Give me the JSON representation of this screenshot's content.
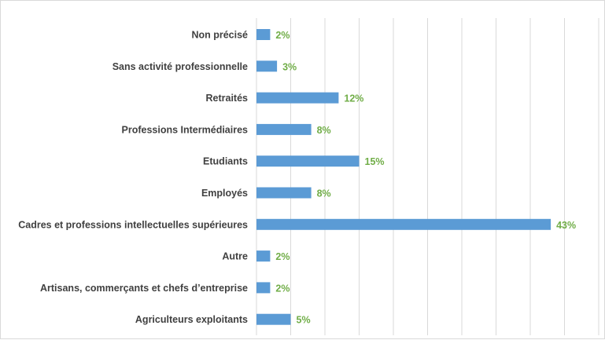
{
  "chart_data": {
    "type": "bar",
    "orientation": "horizontal",
    "categories": [
      "Non précisé",
      "Sans activité professionnelle",
      "Retraités",
      "Professions Intermédiaires",
      "Etudiants",
      "Employés",
      "Cadres et professions intellectuelles supérieures",
      "Autre",
      "Artisans, commerçants et chefs d’entreprise",
      "Agriculteurs exploitants"
    ],
    "values": [
      2,
      3,
      12,
      8,
      15,
      8,
      43,
      2,
      2,
      5
    ],
    "value_labels": [
      "2%",
      "3%",
      "12%",
      "8%",
      "15%",
      "8%",
      "43%",
      "2%",
      "2%",
      "5%"
    ],
    "unit": "%",
    "xlim": [
      0,
      50
    ],
    "grid": "vertical",
    "legend": "none",
    "colors": {
      "bar": "#5b9bd5",
      "value_label": "#70ad47",
      "category_label": "#404040",
      "grid": "#d9d9d9"
    }
  }
}
